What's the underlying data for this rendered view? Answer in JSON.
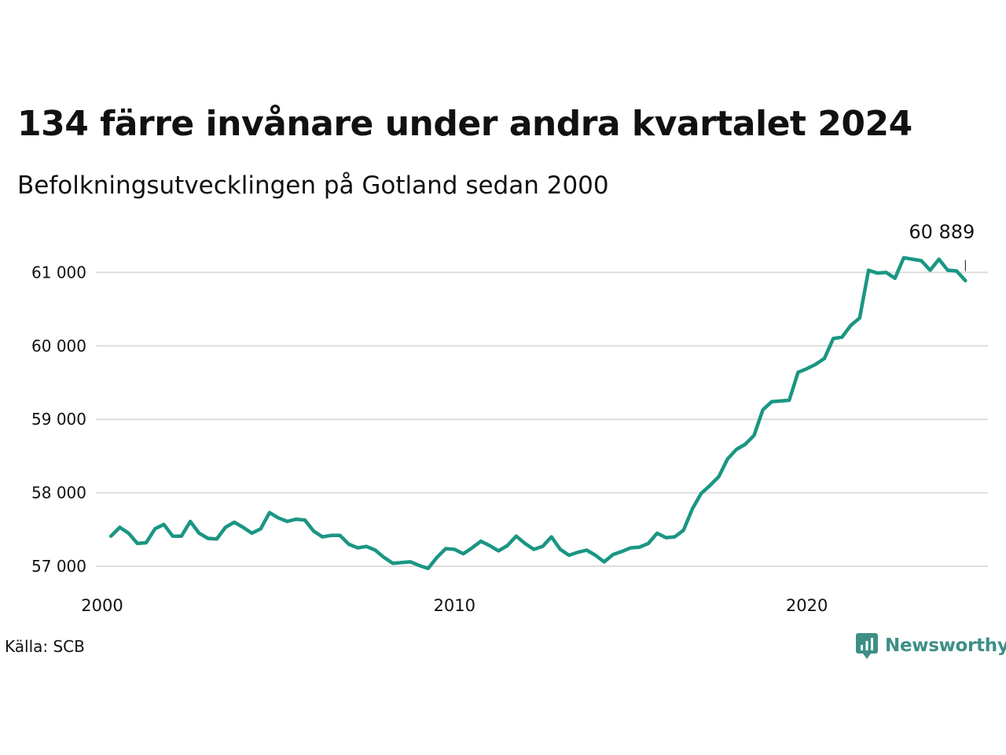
{
  "header": {
    "title": "134 färre invånare under andra kvartalet 2024",
    "subtitle": "Befolkningsutvecklingen på Gotland sedan 2000"
  },
  "footer": {
    "source": "Källa: SCB",
    "brand": "Newsworthy"
  },
  "colors": {
    "line": "#1a9683",
    "grid": "#dddddd",
    "brand": "#3d8f86"
  },
  "chart_data": {
    "type": "line",
    "title": "134 färre invånare under andra kvartalet 2024",
    "subtitle": "Befolkningsutvecklingen på Gotland sedan 2000",
    "xlabel": "",
    "ylabel": "",
    "x_start": 2000.25,
    "x_step": 0.25,
    "xlim": [
      2000,
      2025.25
    ],
    "ylim": [
      56800,
      61400
    ],
    "x_ticks": [
      {
        "value": 2000,
        "label": "2000"
      },
      {
        "value": 2010,
        "label": "2010"
      },
      {
        "value": 2020,
        "label": "2020"
      }
    ],
    "y_ticks": [
      {
        "value": 57000,
        "label": "57 000"
      },
      {
        "value": 58000,
        "label": "58 000"
      },
      {
        "value": 59000,
        "label": "59 000"
      },
      {
        "value": 60000,
        "label": "60 000"
      },
      {
        "value": 61000,
        "label": "61 000"
      }
    ],
    "grid": true,
    "end_label": "60 889",
    "series": [
      {
        "values": [
          57410,
          57530,
          57450,
          57310,
          57320,
          57510,
          57570,
          57410,
          57410,
          57610,
          57450,
          57380,
          57370,
          57530,
          57600,
          57530,
          57450,
          57510,
          57730,
          57660,
          57610,
          57640,
          57630,
          57480,
          57400,
          57420,
          57420,
          57300,
          57250,
          57270,
          57220,
          57120,
          57040,
          57050,
          57060,
          57010,
          56970,
          57120,
          57240,
          57230,
          57170,
          57250,
          57340,
          57280,
          57210,
          57280,
          57410,
          57310,
          57230,
          57270,
          57400,
          57230,
          57150,
          57190,
          57220,
          57150,
          57060,
          57160,
          57200,
          57250,
          57260,
          57310,
          57450,
          57390,
          57400,
          57490,
          57780,
          57990,
          58100,
          58220,
          58460,
          58590,
          58660,
          58780,
          59130,
          59240,
          59250,
          59260,
          59640,
          59690,
          59750,
          59830,
          60100,
          60120,
          60280,
          60380,
          61030,
          60990,
          61000,
          60920,
          61200,
          61180,
          61160,
          61030,
          61180,
          61030,
          61020,
          60889
        ]
      }
    ]
  }
}
